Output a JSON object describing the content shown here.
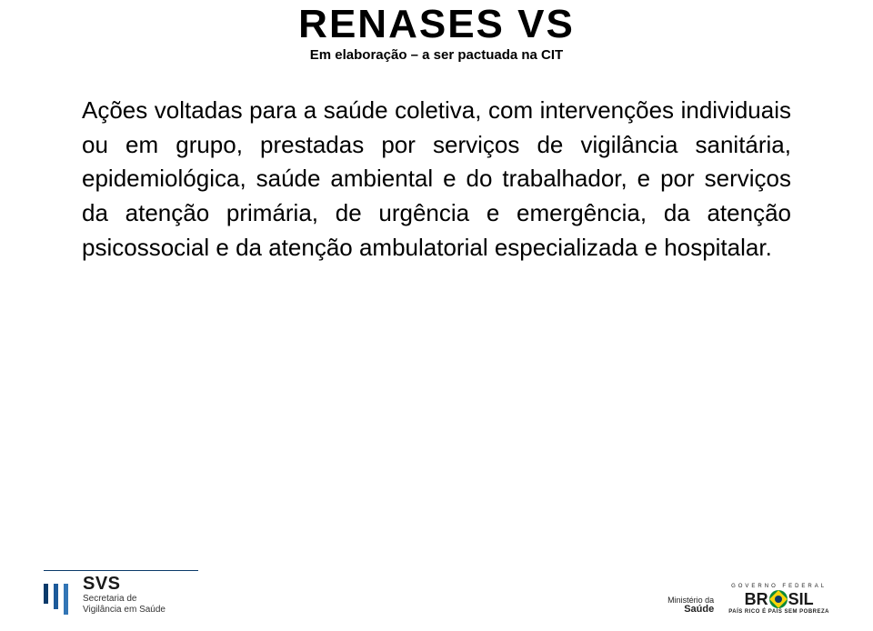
{
  "title": "RENASES VS",
  "subtitle": "Em elaboração – a ser pactuada na CIT",
  "body": "Ações voltadas para a saúde coletiva, com intervenções individuais ou em grupo, prestadas por serviços de vigilância sanitária, epidemiológica, saúde ambiental e do trabalhador, e por serviços da atenção primária, de urgência e emergência, da atenção psicossocial e da atenção ambulatorial especializada e hospitalar.",
  "footer": {
    "svs_abbrev": "SVS",
    "svs_line1": "Secretaria de",
    "svs_line2": "Vigilância em Saúde",
    "ministerio_line1": "Ministério da",
    "ministerio_line2": "Saúde",
    "gov_federal": "GOVERNO FEDERAL",
    "brasil_left": "BR",
    "brasil_right": "SIL",
    "tagline": "PAÍS RICO É PAÍS SEM POBREZA"
  },
  "colors": {
    "text": "#000000",
    "svs_bar1": "#0b3a6a",
    "svs_bar2": "#1c5a9a",
    "svs_bar3": "#3275b5",
    "flag_green": "#0d8a3a",
    "flag_yellow": "#f7d40a",
    "flag_blue": "#0b3a6a",
    "background": "#ffffff"
  },
  "typography": {
    "title_fontsize": 44,
    "title_weight": 900,
    "subtitle_fontsize": 15,
    "body_fontsize": 26,
    "body_lineheight": 1.45
  }
}
